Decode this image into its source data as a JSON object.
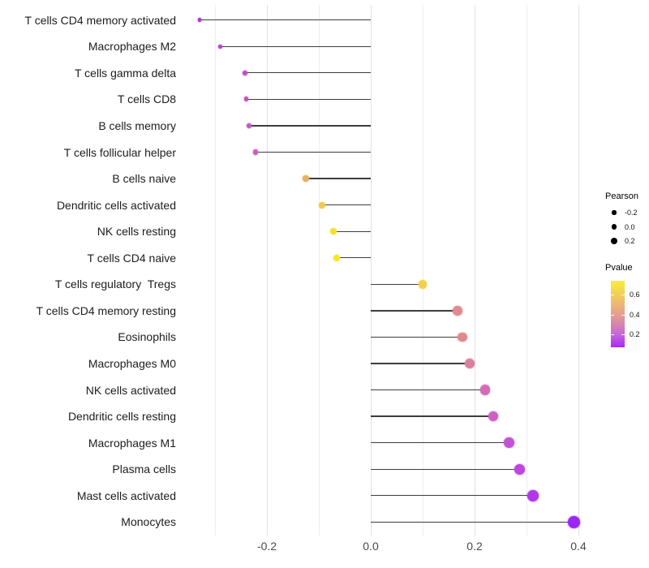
{
  "chart_data": {
    "type": "lollipop",
    "title": "",
    "xlabel": "",
    "ylabel": "",
    "background": "#ffffff",
    "grid": "on",
    "xlim": [
      -0.367,
      0.428
    ],
    "x_ticks": [
      {
        "value": -0.2,
        "label": "-0.2"
      },
      {
        "value": 0.0,
        "label": "0.0"
      },
      {
        "value": 0.2,
        "label": "0.2"
      },
      {
        "value": 0.4,
        "label": "0.4"
      }
    ],
    "x_minor_ticks": [
      -0.3,
      -0.1,
      0.1,
      0.3
    ],
    "stem_color": "#3d3d3d",
    "points": [
      {
        "label": "T cells CD4 memory activated",
        "pearson": -0.33,
        "color": "#AE35C7"
      },
      {
        "label": "Macrophages M2",
        "pearson": -0.29,
        "color": "#BA41C6"
      },
      {
        "label": "T cells gamma delta",
        "pearson": -0.242,
        "color": "#C14FBE"
      },
      {
        "label": "T cells CD8",
        "pearson": -0.24,
        "color": "#C251BF"
      },
      {
        "label": "B cells memory",
        "pearson": -0.235,
        "color": "#C458C0"
      },
      {
        "label": "T cells follicular helper",
        "pearson": -0.222,
        "color": "#C75FC1"
      },
      {
        "label": "B cells naive",
        "pearson": -0.125,
        "color": "#EBAE61"
      },
      {
        "label": "Dendritic cells activated",
        "pearson": -0.094,
        "color": "#F2CB4F"
      },
      {
        "label": "NK cells resting",
        "pearson": -0.072,
        "color": "#F6E02E"
      },
      {
        "label": "T cells CD4 naive",
        "pearson": -0.066,
        "color": "#F8E525"
      },
      {
        "label": "T cells regulatory  Tregs",
        "pearson": 0.1,
        "color": "#EFD24C"
      },
      {
        "label": "T cells CD4 memory resting",
        "pearson": 0.167,
        "color": "#E18B90"
      },
      {
        "label": "Eosinophils",
        "pearson": 0.177,
        "color": "#E0898F"
      },
      {
        "label": "Macrophages M0",
        "pearson": 0.19,
        "color": "#DC7F9E"
      },
      {
        "label": "NK cells activated",
        "pearson": 0.22,
        "color": "#D46CB5"
      },
      {
        "label": "Dendritic cells resting",
        "pearson": 0.236,
        "color": "#CD5FC5"
      },
      {
        "label": "Macrophages M1",
        "pearson": 0.266,
        "color": "#C551D4"
      },
      {
        "label": "Plasma cells",
        "pearson": 0.287,
        "color": "#BD47DE"
      },
      {
        "label": "Mast cells activated",
        "pearson": 0.313,
        "color": "#B138E9"
      },
      {
        "label": "Monocytes",
        "pearson": 0.392,
        "color": "#9C27F3"
      }
    ],
    "legend": {
      "position": "right",
      "size": {
        "title": "Pearson",
        "entries": [
          {
            "label": "-0.2",
            "value": -0.2
          },
          {
            "label": "0.0",
            "value": 0.0
          },
          {
            "label": "0.2",
            "value": 0.2
          }
        ]
      },
      "color": {
        "title": "Pvalue",
        "domain": [
          0.07,
          0.74
        ],
        "ticks": [
          {
            "value": 0.6,
            "label": "0.6"
          },
          {
            "value": 0.4,
            "label": "0.4"
          },
          {
            "value": 0.2,
            "label": "0.2"
          }
        ],
        "gradient_top_to_bottom": [
          "#FAEC3B",
          "#F2CE5B",
          "#E69E90",
          "#C667D8",
          "#A928F7"
        ]
      }
    }
  }
}
